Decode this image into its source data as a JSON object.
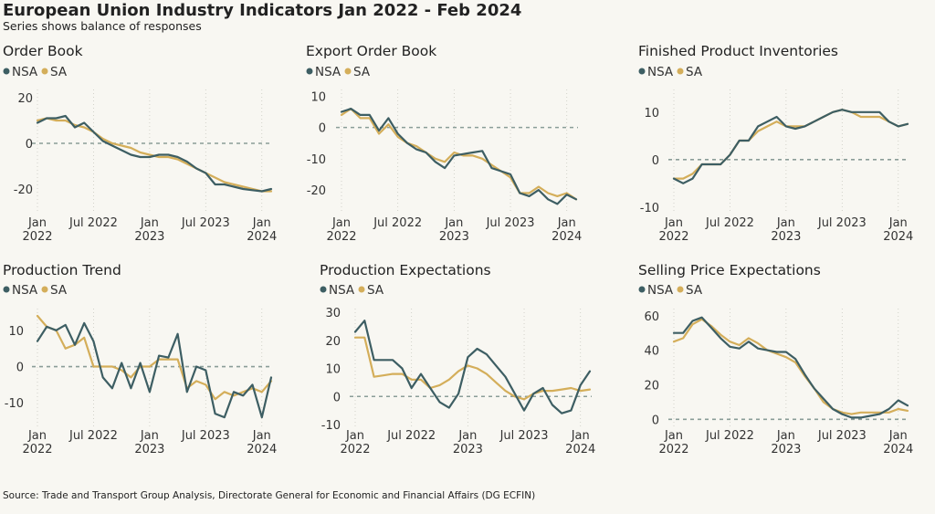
{
  "title": "European Union Industry Indicators Jan 2022 - Feb 2024",
  "subtitle": "Series shows balance of responses",
  "source": "Source: Trade and Transport Group Analysis, Directorate General for Economic and Financial Affairs (DG ECFIN)",
  "colors": {
    "nsa": "#3d5e63",
    "sa": "#d4ae5a",
    "zero_line": "#8a9d98"
  },
  "chart_data": [
    {
      "type": "line",
      "title": "Order Book",
      "x": [
        "2022-01",
        "2022-02",
        "2022-03",
        "2022-04",
        "2022-05",
        "2022-06",
        "2022-07",
        "2022-08",
        "2022-09",
        "2022-10",
        "2022-11",
        "2022-12",
        "2023-01",
        "2023-02",
        "2023-03",
        "2023-04",
        "2023-05",
        "2023-06",
        "2023-07",
        "2023-08",
        "2023-09",
        "2023-10",
        "2023-11",
        "2023-12",
        "2024-01",
        "2024-02"
      ],
      "x_ticks": [
        {
          "x": "2022-01",
          "line1": "Jan",
          "line2": "2022"
        },
        {
          "x": "2022-07",
          "line1": "Jul 2022",
          "line2": ""
        },
        {
          "x": "2023-01",
          "line1": "Jan",
          "line2": "2023"
        },
        {
          "x": "2023-07",
          "line1": "Jul 2023",
          "line2": ""
        },
        {
          "x": "2024-01",
          "line1": "Jan",
          "line2": "2024"
        }
      ],
      "y_ticks": [
        -20,
        0,
        20
      ],
      "ylim": [
        -30,
        22
      ],
      "series": [
        {
          "name": "NSA",
          "values": [
            9,
            11,
            11,
            12,
            7,
            9,
            5,
            1,
            -1,
            -3,
            -5,
            -6,
            -6,
            -5,
            -5,
            -6,
            -8,
            -11,
            -13,
            -18,
            -18,
            -19,
            -20,
            -20.5,
            -21,
            -20
          ]
        },
        {
          "name": "SA",
          "values": [
            10,
            11,
            10,
            10,
            8,
            7,
            5,
            2,
            0,
            -1,
            -2,
            -4,
            -5,
            -6,
            -6,
            -7,
            -9,
            -11,
            -13,
            -15,
            -17,
            -18,
            -19,
            -20,
            -21,
            -21
          ]
        }
      ]
    },
    {
      "type": "line",
      "title": "Export Order Book",
      "x": [
        "2022-01",
        "2022-02",
        "2022-03",
        "2022-04",
        "2022-05",
        "2022-06",
        "2022-07",
        "2022-08",
        "2022-09",
        "2022-10",
        "2022-11",
        "2022-12",
        "2023-01",
        "2023-02",
        "2023-03",
        "2023-04",
        "2023-05",
        "2023-06",
        "2023-07",
        "2023-08",
        "2023-09",
        "2023-10",
        "2023-11",
        "2023-12",
        "2024-01",
        "2024-02"
      ],
      "x_ticks": [
        {
          "x": "2022-01",
          "line1": "Jan",
          "line2": "2022"
        },
        {
          "x": "2022-07",
          "line1": "Jul 2022",
          "line2": ""
        },
        {
          "x": "2023-01",
          "line1": "Jan",
          "line2": "2023"
        },
        {
          "x": "2023-07",
          "line1": "Jul 2023",
          "line2": ""
        },
        {
          "x": "2024-01",
          "line1": "Jan",
          "line2": "2024"
        }
      ],
      "y_ticks": [
        -20,
        -10,
        0,
        10
      ],
      "ylim": [
        -27,
        11
      ],
      "series": [
        {
          "name": "NSA",
          "values": [
            5,
            6,
            4,
            4,
            -1,
            3,
            -2,
            -5,
            -7,
            -8,
            -11,
            -13,
            -9,
            -8.5,
            -8,
            -7.5,
            -13,
            -14,
            -15,
            -21,
            -22,
            -20,
            -23,
            -24.5,
            -21.5,
            -23
          ]
        },
        {
          "name": "SA",
          "values": [
            4,
            6,
            3,
            3,
            -2,
            1,
            -3,
            -5,
            -6,
            -8,
            -10,
            -11,
            -8,
            -9,
            -9,
            -10,
            -12,
            -14,
            -16,
            -21,
            -21,
            -19,
            -21,
            -22,
            -21,
            -23
          ]
        }
      ]
    },
    {
      "type": "line",
      "title": "Finished Product Inventories",
      "x": [
        "2022-01",
        "2022-02",
        "2022-03",
        "2022-04",
        "2022-05",
        "2022-06",
        "2022-07",
        "2022-08",
        "2022-09",
        "2022-10",
        "2022-11",
        "2022-12",
        "2023-01",
        "2023-02",
        "2023-03",
        "2023-04",
        "2023-05",
        "2023-06",
        "2023-07",
        "2023-08",
        "2023-09",
        "2023-10",
        "2023-11",
        "2023-12",
        "2024-01",
        "2024-02"
      ],
      "x_ticks": [
        {
          "x": "2022-01",
          "line1": "Jan",
          "line2": "2022"
        },
        {
          "x": "2022-07",
          "line1": "Jul 2022",
          "line2": ""
        },
        {
          "x": "2023-01",
          "line1": "Jan",
          "line2": "2023"
        },
        {
          "x": "2023-07",
          "line1": "Jul 2023",
          "line2": ""
        },
        {
          "x": "2024-01",
          "line1": "Jan",
          "line2": "2024"
        }
      ],
      "y_ticks": [
        -10,
        0,
        10
      ],
      "ylim": [
        -11,
        14
      ],
      "series": [
        {
          "name": "NSA",
          "values": [
            -4,
            -5,
            -4,
            -1,
            -1,
            -1,
            1,
            4,
            4,
            7,
            8,
            9,
            7,
            6.5,
            7,
            8,
            9,
            10,
            10.5,
            10,
            10,
            10,
            10,
            8,
            7,
            7.5
          ]
        },
        {
          "name": "SA",
          "values": [
            -4,
            -4,
            -3,
            -1,
            -1,
            -1,
            1,
            4,
            4,
            6,
            7,
            8,
            7,
            7,
            7,
            8,
            9,
            10,
            10.5,
            10,
            9,
            9,
            9,
            8,
            7,
            7.5
          ]
        }
      ]
    },
    {
      "type": "line",
      "title": "Production Trend",
      "x": [
        "2022-01",
        "2022-02",
        "2022-03",
        "2022-04",
        "2022-05",
        "2022-06",
        "2022-07",
        "2022-08",
        "2022-09",
        "2022-10",
        "2022-11",
        "2022-12",
        "2023-01",
        "2023-02",
        "2023-03",
        "2023-04",
        "2023-05",
        "2023-06",
        "2023-07",
        "2023-08",
        "2023-09",
        "2023-10",
        "2023-11",
        "2023-12",
        "2024-01",
        "2024-02"
      ],
      "x_ticks": [
        {
          "x": "2022-01",
          "line1": "Jan",
          "line2": "2022"
        },
        {
          "x": "2022-07",
          "line1": "Jul 2022",
          "line2": ""
        },
        {
          "x": "2023-01",
          "line1": "Jan",
          "line2": "2023"
        },
        {
          "x": "2023-07",
          "line1": "Jul 2023",
          "line2": ""
        },
        {
          "x": "2024-01",
          "line1": "Jan",
          "line2": "2024"
        }
      ],
      "y_ticks": [
        -10,
        0,
        10
      ],
      "ylim": [
        -16,
        15
      ],
      "series": [
        {
          "name": "NSA",
          "values": [
            7,
            11,
            10,
            11.5,
            6,
            12,
            7,
            -3,
            -6,
            1,
            -6,
            1,
            -7,
            3,
            2.5,
            9,
            -7,
            0,
            -1,
            -13,
            -14,
            -7,
            -8,
            -5,
            -14,
            -3
          ]
        },
        {
          "name": "SA",
          "values": [
            14,
            11,
            10,
            5,
            6,
            8,
            0,
            0,
            0,
            -1,
            -3,
            0,
            0,
            2,
            2,
            2,
            -6,
            -4,
            -5,
            -9,
            -7,
            -8,
            -7,
            -6,
            -7,
            -4
          ]
        }
      ]
    },
    {
      "type": "line",
      "title": "Production Expectations",
      "x": [
        "2022-01",
        "2022-02",
        "2022-03",
        "2022-04",
        "2022-05",
        "2022-06",
        "2022-07",
        "2022-08",
        "2022-09",
        "2022-10",
        "2022-11",
        "2022-12",
        "2023-01",
        "2023-02",
        "2023-03",
        "2023-04",
        "2023-05",
        "2023-06",
        "2023-07",
        "2023-08",
        "2023-09",
        "2023-10",
        "2023-11",
        "2023-12",
        "2024-01",
        "2024-02"
      ],
      "x_ticks": [
        {
          "x": "2022-01",
          "line1": "Jan",
          "line2": "2022"
        },
        {
          "x": "2022-07",
          "line1": "Jul 2022",
          "line2": ""
        },
        {
          "x": "2023-01",
          "line1": "Jan",
          "line2": "2023"
        },
        {
          "x": "2023-07",
          "line1": "Jul 2023",
          "line2": ""
        },
        {
          "x": "2024-01",
          "line1": "Jan",
          "line2": "2024"
        }
      ],
      "y_ticks": [
        -10,
        0,
        10,
        20,
        30
      ],
      "ylim": [
        -10,
        30
      ],
      "series": [
        {
          "name": "NSA",
          "values": [
            23,
            27,
            13,
            13,
            13,
            10,
            3,
            8,
            3,
            -2,
            -4,
            1,
            14,
            17,
            15,
            11,
            7,
            1,
            -5,
            1,
            3,
            -3,
            -6,
            -5,
            4,
            9
          ]
        },
        {
          "name": "SA",
          "values": [
            21,
            21,
            7,
            7.5,
            8,
            8,
            6,
            6,
            3,
            4,
            6,
            9,
            11,
            10,
            8,
            5,
            2,
            0,
            -1,
            1,
            2,
            2,
            2.5,
            3,
            2,
            2.5
          ]
        }
      ]
    },
    {
      "type": "line",
      "title": "Selling Price Expectations",
      "x": [
        "2022-01",
        "2022-02",
        "2022-03",
        "2022-04",
        "2022-05",
        "2022-06",
        "2022-07",
        "2022-08",
        "2022-09",
        "2022-10",
        "2022-11",
        "2022-12",
        "2023-01",
        "2023-02",
        "2023-03",
        "2023-04",
        "2023-05",
        "2023-06",
        "2023-07",
        "2023-08",
        "2023-09",
        "2023-10",
        "2023-11",
        "2023-12",
        "2024-01",
        "2024-02"
      ],
      "x_ticks": [
        {
          "x": "2022-01",
          "line1": "Jan",
          "line2": "2022"
        },
        {
          "x": "2022-07",
          "line1": "Jul 2022",
          "line2": ""
        },
        {
          "x": "2023-01",
          "line1": "Jan",
          "line2": "2023"
        },
        {
          "x": "2023-07",
          "line1": "Jul 2023",
          "line2": ""
        },
        {
          "x": "2024-01",
          "line1": "Jan",
          "line2": "2024"
        }
      ],
      "y_ticks": [
        0,
        20,
        40,
        60
      ],
      "ylim": [
        -3,
        62
      ],
      "series": [
        {
          "name": "NSA",
          "values": [
            50,
            50,
            57,
            59,
            53,
            47,
            42,
            41,
            45,
            41,
            40,
            39,
            39,
            35,
            26,
            18,
            12,
            6,
            3,
            1,
            1,
            2,
            3,
            6,
            11,
            8
          ]
        },
        {
          "name": "SA",
          "values": [
            45,
            47,
            55,
            58,
            54,
            49,
            45,
            43,
            47,
            44,
            40,
            38,
            36,
            33,
            25,
            18,
            10,
            6,
            4,
            3,
            4,
            4,
            4,
            4,
            6,
            5
          ]
        }
      ]
    }
  ]
}
